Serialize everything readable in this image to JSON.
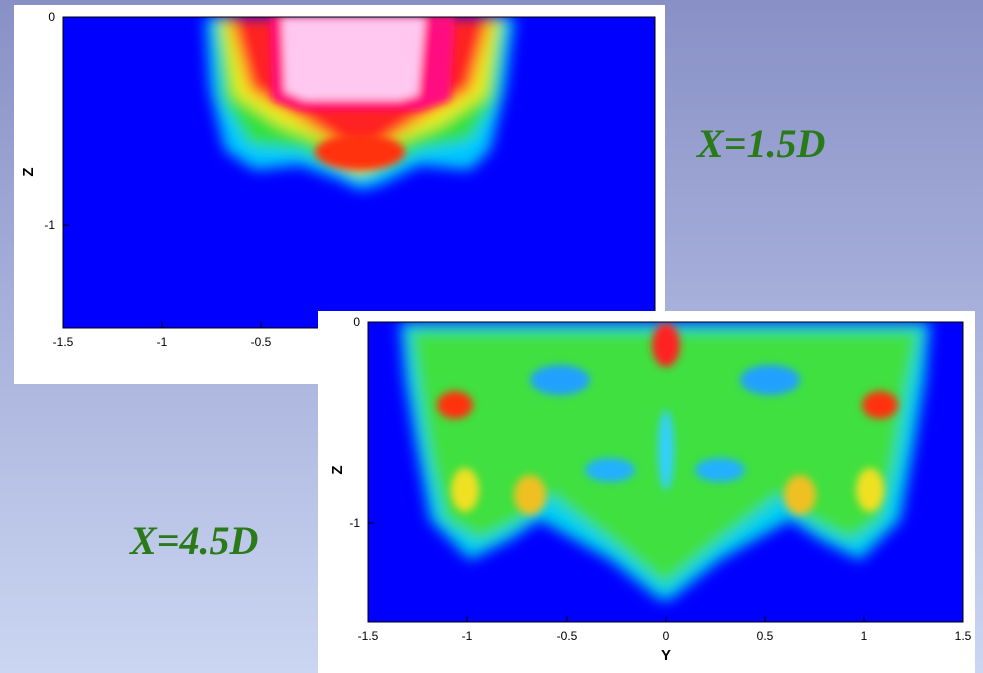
{
  "plots": [
    {
      "z_label": "Z",
      "z_ticks": [
        "0",
        "-1"
      ],
      "y_ticks": [
        "-1.5",
        "-1",
        "-0.5"
      ]
    },
    {
      "z_label": "Z",
      "y_label": "Y",
      "z_ticks": [
        "0",
        "-1"
      ],
      "y_ticks": [
        "-1.5",
        "-1",
        "-0.5",
        "0",
        "0.5",
        "1",
        "1.5"
      ]
    }
  ],
  "annotations": [
    "X=1.5D",
    "X=4.5D"
  ]
}
